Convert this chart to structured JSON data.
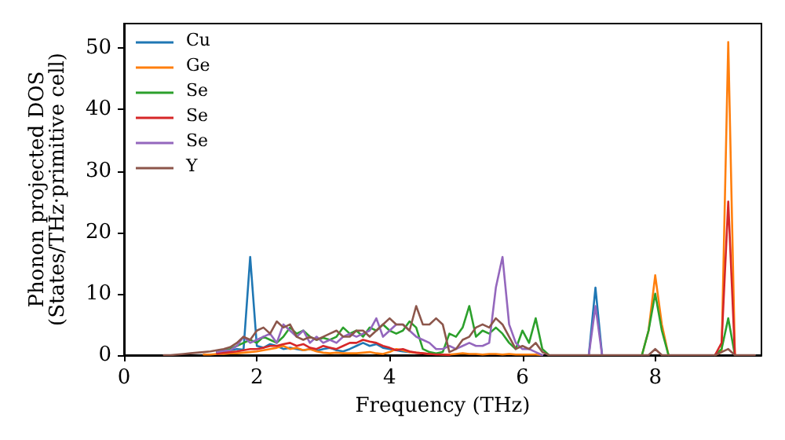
{
  "chart_data": {
    "type": "line",
    "xlabel": "Frequency (THz)",
    "ylabel": "Phonon projected DOS\n(States/THz·primitive cell)",
    "x": [
      0.6,
      0.7,
      0.8,
      0.9,
      1.0,
      1.1,
      1.2,
      1.3,
      1.4,
      1.5,
      1.6,
      1.7,
      1.8,
      1.9,
      2.0,
      2.1,
      2.2,
      2.3,
      2.4,
      2.5,
      2.6,
      2.7,
      2.8,
      2.9,
      3.0,
      3.1,
      3.2,
      3.3,
      3.4,
      3.5,
      3.6,
      3.7,
      3.8,
      3.9,
      4.0,
      4.1,
      4.2,
      4.3,
      4.4,
      4.5,
      4.6,
      4.7,
      4.8,
      4.9,
      5.0,
      5.1,
      5.2,
      5.3,
      5.4,
      5.5,
      5.6,
      5.7,
      5.8,
      5.9,
      6.0,
      6.1,
      6.2,
      6.3,
      6.4,
      6.5,
      6.6,
      6.7,
      6.8,
      6.9,
      7.0,
      7.1,
      7.2,
      7.3,
      7.4,
      7.5,
      7.6,
      7.7,
      7.8,
      7.9,
      8.0,
      8.1,
      8.2,
      8.3,
      8.4,
      8.5,
      8.6,
      8.7,
      8.8,
      8.9,
      9.0,
      9.1,
      9.2,
      9.3,
      9.4,
      9.5
    ],
    "series": [
      {
        "name": "Cu",
        "color": "#1f77b4",
        "values": [
          null,
          null,
          null,
          null,
          null,
          null,
          null,
          null,
          0.5,
          0.6,
          0.8,
          1,
          0.9,
          16,
          1.5,
          1.2,
          1.8,
          1.5,
          1,
          1.2,
          1,
          0.8,
          1,
          0.7,
          1,
          1.2,
          0.8,
          0.6,
          1,
          1.5,
          2,
          1.5,
          1.8,
          1.2,
          1,
          0.8,
          0.6,
          0.5,
          null,
          null,
          null,
          null,
          null,
          null,
          null,
          null,
          null,
          null,
          null,
          null,
          null,
          null,
          null,
          null,
          null,
          null,
          null,
          null,
          null,
          null,
          null,
          null,
          null,
          null,
          0,
          11,
          0,
          null,
          null,
          null,
          null,
          null,
          null,
          null,
          null,
          null,
          null,
          null,
          null,
          null,
          null,
          null,
          null,
          null,
          null,
          null,
          null,
          null,
          null,
          null
        ]
      },
      {
        "name": "Ge",
        "color": "#ff7f0e",
        "values": [
          null,
          null,
          null,
          null,
          null,
          null,
          0.1,
          0.1,
          0.2,
          0.2,
          0.3,
          0.3,
          0.4,
          0.5,
          0.6,
          0.8,
          1,
          1.2,
          1.5,
          1,
          1.2,
          0.8,
          1,
          0.6,
          0.4,
          0.3,
          0.4,
          0.3,
          0.3,
          0.3,
          0.4,
          0.5,
          0.3,
          0.2,
          0.5,
          1,
          0.8,
          0.5,
          0.4,
          0.3,
          0.2,
          0.2,
          0.1,
          0.1,
          0.2,
          0.3,
          0.2,
          0.2,
          0.1,
          0.2,
          0.2,
          0.1,
          0.2,
          0.1,
          0.1,
          0.1,
          0.1,
          0,
          null,
          null,
          null,
          null,
          null,
          null,
          null,
          null,
          null,
          null,
          null,
          null,
          null,
          null,
          0,
          4,
          13,
          5,
          0,
          null,
          null,
          null,
          null,
          null,
          null,
          0,
          0.5,
          51,
          0,
          null,
          null,
          null
        ]
      },
      {
        "name": "Se",
        "color": "#2ca02c",
        "values": [
          null,
          null,
          null,
          null,
          null,
          null,
          null,
          null,
          0.6,
          0.8,
          1,
          1.5,
          2,
          2.5,
          2,
          3,
          2.5,
          2,
          3,
          4.5,
          3.5,
          4,
          3,
          2.5,
          2.8,
          2.5,
          3,
          4.5,
          3.5,
          4,
          3,
          4.5,
          4,
          5,
          4,
          3.5,
          4,
          5.5,
          4.5,
          1,
          0.5,
          0.3,
          0.5,
          3.5,
          3,
          4.5,
          8,
          3,
          4,
          3.5,
          4.5,
          3.5,
          2,
          1,
          4,
          2,
          6,
          1,
          0,
          null,
          null,
          null,
          null,
          null,
          null,
          null,
          null,
          null,
          null,
          null,
          null,
          null,
          0,
          4,
          10,
          4,
          0,
          null,
          null,
          null,
          null,
          null,
          null,
          0,
          1,
          6,
          0,
          null,
          null,
          null
        ]
      },
      {
        "name": "Se",
        "color": "#d62728",
        "values": [
          null,
          null,
          null,
          null,
          null,
          null,
          null,
          null,
          0.3,
          0.4,
          0.5,
          0.6,
          0.8,
          1,
          1,
          1.2,
          1.5,
          1.5,
          1.8,
          2,
          1.5,
          1.8,
          1.2,
          1,
          1.5,
          1.2,
          1,
          1.5,
          2,
          2,
          2.5,
          2.2,
          2,
          1.5,
          1.2,
          0.8,
          1,
          0.6,
          0.4,
          0.3,
          0.2,
          0.1,
          0.1,
          0,
          null,
          null,
          null,
          null,
          null,
          null,
          null,
          null,
          null,
          null,
          null,
          null,
          null,
          null,
          null,
          null,
          null,
          null,
          null,
          null,
          null,
          null,
          null,
          null,
          null,
          null,
          null,
          null,
          null,
          null,
          null,
          null,
          null,
          null,
          null,
          null,
          null,
          null,
          null,
          0,
          2,
          25,
          0,
          null,
          null,
          null
        ]
      },
      {
        "name": "Se",
        "color": "#9467bd",
        "values": [
          null,
          null,
          null,
          null,
          null,
          null,
          null,
          null,
          0.5,
          0.7,
          0.8,
          1.5,
          3,
          2,
          2.5,
          3,
          3.5,
          2,
          5,
          4,
          3,
          4,
          2,
          3,
          2,
          2.5,
          2,
          3,
          3.5,
          3,
          3.5,
          4,
          6,
          3,
          4,
          5,
          5,
          4,
          3,
          2.5,
          2,
          1,
          1,
          1.5,
          1,
          1.5,
          2,
          1.5,
          1.5,
          2,
          11,
          16,
          5,
          2,
          1,
          1,
          0.5,
          0,
          null,
          null,
          null,
          null,
          null,
          null,
          0,
          8,
          0,
          null,
          null,
          null,
          null,
          null,
          null,
          null,
          null,
          null,
          null,
          null,
          null,
          null,
          null,
          null,
          null,
          null,
          null,
          null,
          null,
          null,
          null,
          null
        ]
      },
      {
        "name": "Y",
        "color": "#8c564b",
        "values": [
          0,
          0,
          0.1,
          0.2,
          0.3,
          0.4,
          0.5,
          0.6,
          0.8,
          1,
          1.3,
          2,
          3,
          2.5,
          4,
          4.5,
          3.5,
          5.5,
          4.5,
          5,
          3,
          2.5,
          3,
          2.5,
          3,
          3.5,
          4,
          3,
          3,
          4,
          4,
          3,
          4,
          5,
          6,
          5,
          5,
          4,
          8,
          5,
          5,
          6,
          5,
          0.5,
          1,
          2.5,
          3,
          4.5,
          5,
          4.5,
          6,
          5,
          3,
          1,
          1.5,
          1,
          2,
          0.5,
          0,
          0,
          0,
          0,
          0,
          0,
          0,
          0,
          0,
          0,
          0,
          0,
          0,
          0,
          0,
          0,
          1,
          0,
          0,
          0,
          0,
          0,
          0,
          0,
          0,
          0,
          0.5,
          1,
          0,
          0,
          0,
          0
        ]
      }
    ],
    "xlim": [
      0,
      9.6
    ],
    "xticks": [
      0,
      2,
      4,
      6,
      8
    ],
    "ylim": [
      0,
      54
    ],
    "yticks": [
      0,
      10,
      20,
      30,
      40,
      50
    ],
    "legend": "top left",
    "grid": false,
    "marker": "none",
    "line_style": "solid"
  }
}
